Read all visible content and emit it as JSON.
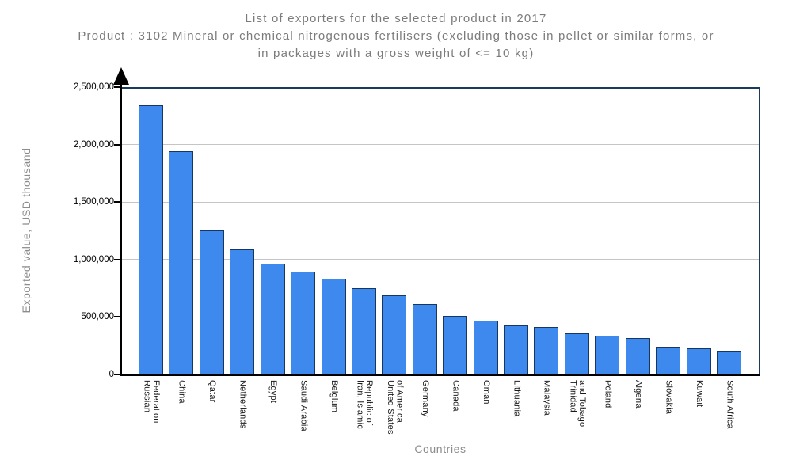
{
  "header": {
    "title": "List of exporters for the selected product in 2017",
    "subtitle": "Product : 3102 Mineral or chemical nitrogenous fertilisers (excluding those in pellet or similar forms, or in packages with a gross weight of <= 10 kg)",
    "subtitle_lines": [
      "Product : 3102 Mineral or chemical nitrogenous fertilisers (excluding those in pellet or similar forms, or",
      "in packages with a gross weight of <= 10 kg)"
    ]
  },
  "chart_data": {
    "type": "bar",
    "title": "List of exporters for the selected product in 2017",
    "subtitle": "Product : 3102 Mineral or chemical nitrogenous fertilisers (excluding those in pellet or similar forms, or in packages with a gross weight of <= 10 kg)",
    "xlabel": "Countries",
    "ylabel": "Exported value, USD thousand",
    "unit": "USD thousand",
    "year": "2017",
    "ylim": [
      0,
      2500000
    ],
    "grid": true,
    "legend": "none",
    "ytick_values": [
      0,
      500000,
      1000000,
      1500000,
      2000000,
      2500000
    ],
    "ytick_labels": [
      "0",
      "500,000",
      "1,000,000",
      "1,500,000",
      "2,000,000",
      "2,500,000"
    ],
    "categories": [
      "Russian Federation",
      "China",
      "Qatar",
      "Netherlands",
      "Egypt",
      "Saudi Arabia",
      "Belgium",
      "Iran, Islamic Republic of",
      "United States of America",
      "Germany",
      "Canada",
      "Oman",
      "Lithuania",
      "Malaysia",
      "Trinidad and Tobago",
      "Poland",
      "Algeria",
      "Slovakia",
      "Kuwait",
      "South Africa"
    ],
    "display_labels": [
      "Russian\nFederation",
      "China",
      "Qatar",
      "Netherlands",
      "Egypt",
      "Saudi Arabia",
      "Belgium",
      "Iran, Islamic\nRepublic of",
      "United States\nof America",
      "Germany",
      "Canada",
      "Oman",
      "Lithuania",
      "Malaysia",
      "Trinidad\nand Tobago",
      "Poland",
      "Algeria",
      "Slovakia",
      "Kuwait",
      "South Africa"
    ],
    "values": [
      2340000,
      1940000,
      1255000,
      1085000,
      965000,
      895000,
      835000,
      750000,
      690000,
      615000,
      510000,
      465000,
      425000,
      410000,
      360000,
      340000,
      315000,
      240000,
      230000,
      210000
    ],
    "colors": {
      "bar_fill": "#3E89EE",
      "bar_border": "#17375E",
      "frame": "#1B3B5E",
      "grid": "#C5C5C5",
      "axis": "#000000",
      "title_text": "#7B7B7B",
      "axis_title_text": "#8C8C8C",
      "tick_text": "#000000"
    },
    "arrow_icon": "up-arrow-on-y-axis"
  }
}
